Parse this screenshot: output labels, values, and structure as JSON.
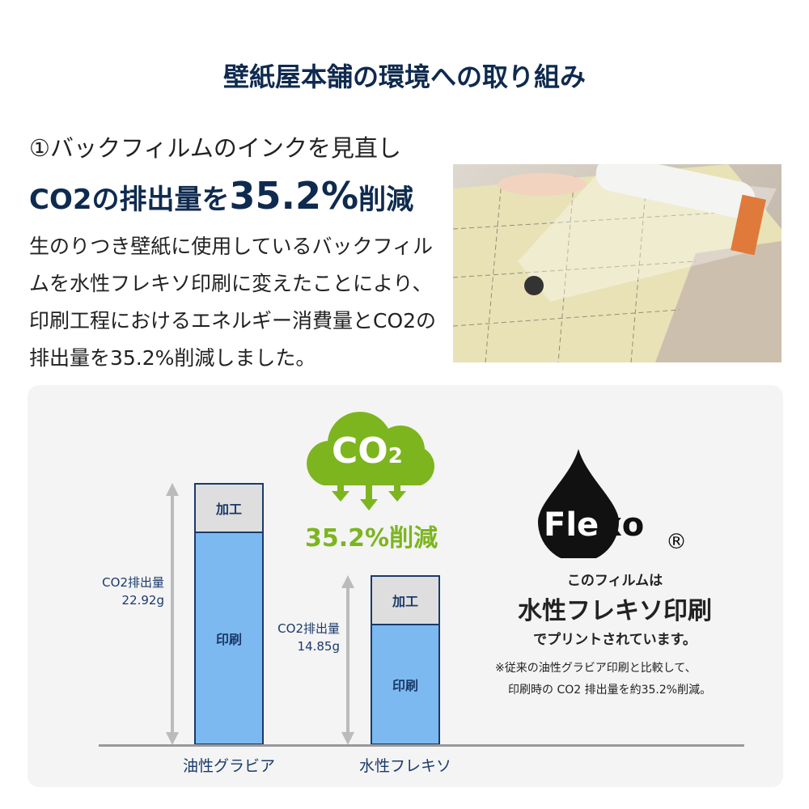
{
  "header": {
    "title": "壁紙屋本舗の環境への取り組み"
  },
  "section": {
    "subtitle": "①バックフィルムのインクを見直し",
    "headline_pre": "CO2の排出量を",
    "headline_value": "35.2%",
    "headline_post": "削減",
    "body": "生のりつき壁紙に使用しているバックフィルムを水性フレキソ印刷に変えたことにより、印刷工程におけるエネルギー消費量とCO2の排出量を35.2%削減しました。"
  },
  "cloud": {
    "label": "CO",
    "sub": "2",
    "reduction": "35.2%削減"
  },
  "flexo": {
    "logo": "Flexo",
    "registered": "®",
    "line1": "このフィルムは",
    "line2": "水性フレキソ印刷",
    "line3": "でプリントされています。",
    "note1": "※従来の油性グラビア印刷と比較して、",
    "note2": "印刷時の CO2 排出量を約35.2%削減。"
  },
  "colors": {
    "navy": "#0f2a4f",
    "green": "#7cb51e",
    "bar_print": "#7cb9f0",
    "bar_process": "#dedede",
    "bar_border": "#1a3a6b"
  },
  "chart_data": {
    "type": "bar",
    "stacked": true,
    "categories": [
      "油性グラビア",
      "水性フレキソ"
    ],
    "series": [
      {
        "name": "印刷",
        "values": [
          18.7,
          10.6
        ]
      },
      {
        "name": "加工",
        "values": [
          4.22,
          4.25
        ]
      }
    ],
    "totals": [
      22.92,
      14.85
    ],
    "total_labels": [
      [
        "CO2排出量",
        "22.92g"
      ],
      [
        "CO2排出量",
        "14.85g"
      ]
    ],
    "ylim": [
      0,
      22.92
    ],
    "grid": false
  }
}
